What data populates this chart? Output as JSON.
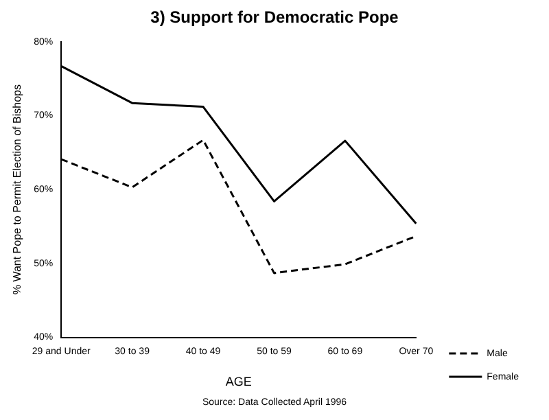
{
  "chart_data": {
    "type": "line",
    "title": "3) Support for Democratic Pope",
    "xlabel": "AGE",
    "ylabel": "% Want Pope to Permit Election of Bishops",
    "categories": [
      "29 and Under",
      "30 to 39",
      "40 to 49",
      "50 to 59",
      "60 to 69",
      "Over 70"
    ],
    "series": [
      {
        "name": "Male",
        "color": "#000000",
        "line_style": "dashed",
        "values": [
          64.1,
          60.3,
          66.7,
          48.7,
          49.9,
          53.7
        ]
      },
      {
        "name": "Female",
        "color": "#000000",
        "line_style": "solid",
        "values": [
          76.7,
          71.7,
          71.2,
          58.4,
          66.6,
          55.4
        ]
      }
    ],
    "ylim": [
      40,
      80
    ],
    "yticks": [
      {
        "value": 40,
        "label": "40%"
      },
      {
        "value": 50,
        "label": "50%"
      },
      {
        "value": 60,
        "label": "60%"
      },
      {
        "value": 70,
        "label": "70%"
      },
      {
        "value": 80,
        "label": "80%"
      }
    ],
    "grid": false,
    "legend": "bottom right",
    "marker": "none",
    "annotations": [
      "Source: Data Collected April 1996"
    ]
  }
}
